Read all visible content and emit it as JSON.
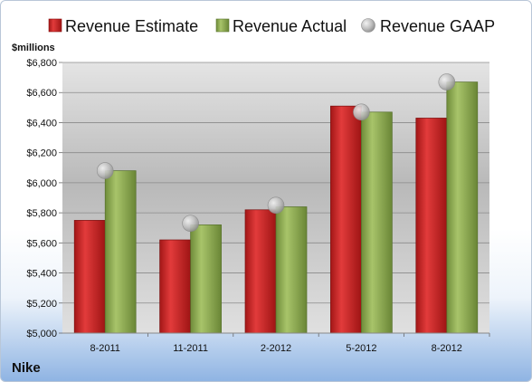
{
  "company": "Nike",
  "chart_data": {
    "type": "bar",
    "ylabel": "$millions",
    "ylim": [
      5000,
      6800
    ],
    "ytick_step": 200,
    "yticks": [
      "$5,000",
      "$5,200",
      "$5,400",
      "$5,600",
      "$5,800",
      "$6,000",
      "$6,200",
      "$6,400",
      "$6,600",
      "$6,800"
    ],
    "grid": true,
    "legend_position": "top",
    "categories": [
      "8-2011",
      "11-2011",
      "2-2012",
      "5-2012",
      "8-2012"
    ],
    "series": [
      {
        "name": "Revenue Estimate",
        "kind": "bar",
        "color": "#d22b2b",
        "values": [
          5750,
          5620,
          5820,
          6510,
          6430
        ]
      },
      {
        "name": "Revenue Actual",
        "kind": "bar",
        "color": "#92b057",
        "values": [
          6080,
          5720,
          5840,
          6470,
          6670
        ]
      },
      {
        "name": "Revenue GAAP",
        "kind": "marker",
        "color": "#b8b8b8",
        "values": [
          6080,
          5730,
          5850,
          6470,
          6670
        ]
      }
    ]
  }
}
